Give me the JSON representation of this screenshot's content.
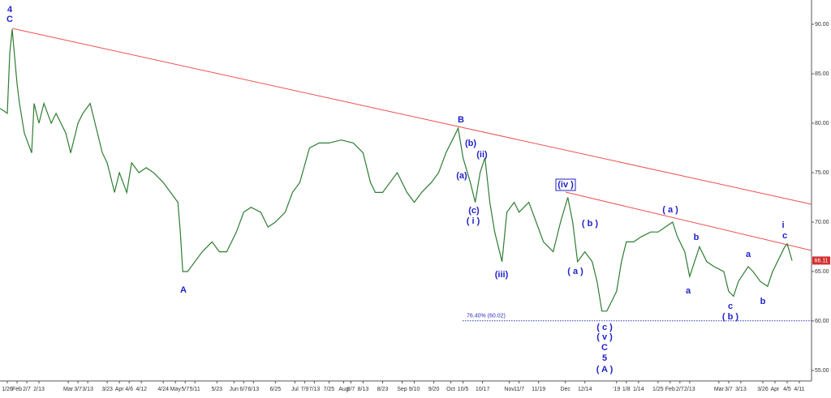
{
  "chart_data": {
    "type": "line",
    "series": [
      {
        "color": "#2e7d32",
        "x": [
          0,
          3,
          4,
          5,
          7,
          8,
          10,
          13,
          14,
          16,
          18,
          21,
          23,
          27,
          29,
          32,
          34,
          37,
          39,
          42,
          44,
          47,
          49,
          52,
          54,
          57,
          60,
          63,
          67,
          70,
          73,
          74,
          75,
          77,
          80,
          83,
          87,
          90,
          93,
          97,
          100,
          103,
          107,
          110,
          113,
          117,
          120,
          123,
          127,
          131,
          135,
          140,
          145,
          149,
          152,
          154,
          157,
          160,
          163,
          167,
          170,
          173,
          177,
          180,
          183,
          186,
          188,
          190,
          193,
          195,
          197,
          199,
          201,
          203,
          206,
          208,
          211,
          213,
          217,
          220,
          223,
          227,
          230,
          233,
          235,
          237,
          240,
          243,
          245,
          247,
          249,
          251,
          253,
          255,
          257,
          260,
          263,
          267,
          270,
          273,
          276,
          278,
          281,
          283,
          285,
          287,
          290,
          293,
          297,
          299,
          301,
          303,
          307,
          309,
          312,
          315,
          317,
          319,
          322,
          323,
          325
        ],
        "values": [
          81.5,
          81,
          87,
          89.5,
          84,
          82,
          79,
          77,
          82,
          80,
          82,
          80,
          81,
          79,
          77,
          80,
          81,
          82,
          80,
          77,
          76,
          73,
          75,
          73,
          76,
          75,
          75.5,
          75,
          74,
          73,
          72,
          69,
          65,
          65,
          66,
          67,
          68,
          67,
          67,
          69,
          71,
          71.5,
          71,
          69.5,
          70,
          71,
          73,
          74,
          77.5,
          78,
          78,
          78.3,
          78,
          77,
          74,
          73,
          73,
          74,
          75,
          73,
          72,
          73,
          74,
          75,
          77,
          78.5,
          79.5,
          76.5,
          74,
          72,
          75,
          76.5,
          72,
          69,
          66,
          71,
          72,
          71,
          72,
          70,
          68,
          67,
          70,
          72.5,
          70,
          66,
          67,
          66,
          64,
          61,
          61,
          62,
          63,
          66,
          68,
          68,
          68.5,
          69,
          69,
          69.5,
          70,
          68.5,
          67,
          64.5,
          66,
          67.5,
          66,
          65.5,
          65,
          63,
          62.5,
          64,
          65.5,
          65,
          64,
          63.5,
          65,
          66,
          67.5,
          67.8,
          66.1
        ]
      }
    ],
    "xlim": [
      0,
      333
    ],
    "ylim": [
      53.93,
      92.46
    ],
    "yticks": [
      {
        "value": 55,
        "label": "55.00"
      },
      {
        "value": 60,
        "label": "60.00"
      },
      {
        "value": 65,
        "label": "65.00"
      },
      {
        "value": 70,
        "label": "70.00"
      },
      {
        "value": 75,
        "label": "75.00"
      },
      {
        "value": 80,
        "label": "80.00"
      },
      {
        "value": 85,
        "label": "85.00"
      },
      {
        "value": 90,
        "label": "90.00"
      }
    ],
    "xticks": [
      {
        "value": 3,
        "label": "1/26"
      },
      {
        "value": 7,
        "label": "Feb"
      },
      {
        "value": 11,
        "label": "2/7"
      },
      {
        "value": 16,
        "label": "2/13"
      },
      {
        "value": 28,
        "label": "Mar"
      },
      {
        "value": 32,
        "label": "3/7"
      },
      {
        "value": 36,
        "label": "3/13"
      },
      {
        "value": 44,
        "label": "3/23"
      },
      {
        "value": 49,
        "label": "Apr"
      },
      {
        "value": 53,
        "label": "4/6"
      },
      {
        "value": 58,
        "label": "4/12"
      },
      {
        "value": 67,
        "label": "4/24"
      },
      {
        "value": 72,
        "label": "May"
      },
      {
        "value": 76,
        "label": "5/7"
      },
      {
        "value": 80,
        "label": "5/11"
      },
      {
        "value": 89,
        "label": "5/23"
      },
      {
        "value": 96,
        "label": "Jun"
      },
      {
        "value": 100,
        "label": "6/7"
      },
      {
        "value": 104,
        "label": "6/13"
      },
      {
        "value": 113,
        "label": "6/25"
      },
      {
        "value": 121,
        "label": "Jul"
      },
      {
        "value": 125,
        "label": "7/9"
      },
      {
        "value": 129,
        "label": "7/13"
      },
      {
        "value": 135,
        "label": "7/25"
      },
      {
        "value": 141,
        "label": "Aug"
      },
      {
        "value": 144,
        "label": "8/7"
      },
      {
        "value": 149,
        "label": "8/13"
      },
      {
        "value": 157,
        "label": "8/23"
      },
      {
        "value": 165,
        "label": "Sep"
      },
      {
        "value": 170,
        "label": "9/10"
      },
      {
        "value": 178,
        "label": "9/20"
      },
      {
        "value": 185,
        "label": "Oct"
      },
      {
        "value": 190,
        "label": "10/5"
      },
      {
        "value": 198,
        "label": "10/17"
      },
      {
        "value": 209,
        "label": "Nov"
      },
      {
        "value": 213,
        "label": "11/7"
      },
      {
        "value": 221,
        "label": "11/19"
      },
      {
        "value": 232,
        "label": "Dec"
      },
      {
        "value": 240,
        "label": "12/14"
      },
      {
        "value": 253,
        "label": "'19"
      },
      {
        "value": 257,
        "label": "1/8"
      },
      {
        "value": 262,
        "label": "1/14"
      },
      {
        "value": 270,
        "label": "1/25"
      },
      {
        "value": 275,
        "label": "Feb"
      },
      {
        "value": 279,
        "label": "2/7"
      },
      {
        "value": 283,
        "label": "2/13"
      },
      {
        "value": 295,
        "label": "Mar"
      },
      {
        "value": 299,
        "label": "3/7"
      },
      {
        "value": 304,
        "label": "3/13"
      },
      {
        "value": 313,
        "label": "3/26"
      },
      {
        "value": 318,
        "label": "Apr"
      },
      {
        "value": 323,
        "label": "4/5"
      },
      {
        "value": 328,
        "label": "4/11"
      }
    ],
    "fib_level": {
      "value": 60.02,
      "label": "76.40% (60.02)"
    },
    "last_price": 66.11,
    "annotations": [
      "4",
      "C",
      "A",
      "B",
      "(b)",
      "(ii)",
      "(a)",
      "(c)",
      "( i )",
      "(iii)",
      "(iv )",
      "( b )",
      "( a )",
      "( c )",
      "( v )",
      "C",
      "5",
      "( A )",
      "( a )",
      "b",
      "a",
      "a",
      "c",
      "( b )",
      "b",
      "i",
      "c"
    ]
  }
}
